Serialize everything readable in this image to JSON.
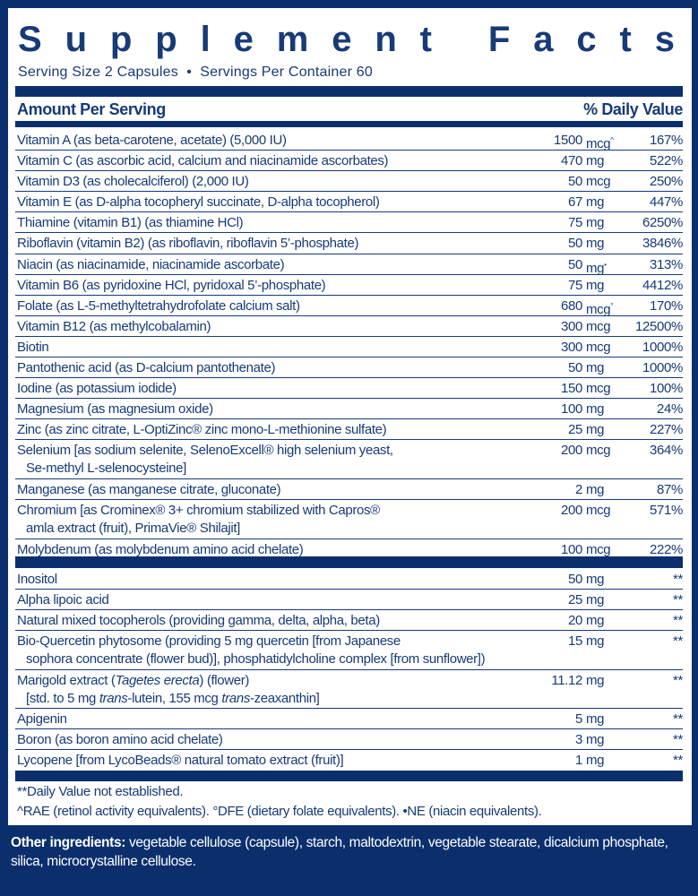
{
  "title": "Supplement Facts",
  "serving": "Serving Size 2 Capsules  •  Servings Per Container 60",
  "header": {
    "amount_per_serving": "Amount Per Serving",
    "daily_value": "% Daily Value"
  },
  "colors": {
    "navy": "#0b2f6d",
    "text": "#173a78",
    "background": "#ffffff"
  },
  "section1": [
    {
      "lines": [
        "Vitamin A (as beta-carotene, acetate) (5,000 IU)"
      ],
      "amount": "1500",
      "unit": "mcg",
      "mark": "^",
      "dv": "167%"
    },
    {
      "lines": [
        "Vitamin C (as ascorbic acid, calcium and niacinamide ascorbates)"
      ],
      "amount": "470",
      "unit": "mg",
      "mark": "",
      "dv": "522%"
    },
    {
      "lines": [
        "Vitamin D3 (as cholecalciferol) (2,000 IU)"
      ],
      "amount": "50",
      "unit": "mcg",
      "mark": "",
      "dv": "250%"
    },
    {
      "lines": [
        "Vitamin E (as D-alpha tocopheryl succinate, D-alpha tocopherol)"
      ],
      "amount": "67",
      "unit": "mg",
      "mark": "",
      "dv": "447%"
    },
    {
      "lines": [
        "Thiamine (vitamin B1) (as thiamine HCl)"
      ],
      "amount": "75",
      "unit": "mg",
      "mark": "",
      "dv": "6250%"
    },
    {
      "lines": [
        "Riboflavin (vitamin B2) (as riboflavin, riboflavin 5’-phosphate)"
      ],
      "amount": "50",
      "unit": "mg",
      "mark": "",
      "dv": "3846%"
    },
    {
      "lines": [
        "Niacin (as niacinamide, niacinamide ascorbate)"
      ],
      "amount": "50",
      "unit": "mg",
      "mark": "•",
      "dv": "313%"
    },
    {
      "lines": [
        "Vitamin B6 (as pyridoxine HCl, pyridoxal 5’-phosphate)"
      ],
      "amount": "75",
      "unit": "mg",
      "mark": "",
      "dv": "4412%"
    },
    {
      "lines": [
        "Folate (as L-5-methyltetrahydrofolate calcium salt)"
      ],
      "amount": "680",
      "unit": "mcg",
      "mark": "°",
      "dv": "170%"
    },
    {
      "lines": [
        "Vitamin B12 (as methylcobalamin)"
      ],
      "amount": "300",
      "unit": "mcg",
      "mark": "",
      "dv": "12500%"
    },
    {
      "lines": [
        "Biotin"
      ],
      "amount": "300",
      "unit": "mcg",
      "mark": "",
      "dv": "1000%"
    },
    {
      "lines": [
        "Pantothenic acid (as D-calcium pantothenate)"
      ],
      "amount": "50",
      "unit": "mg",
      "mark": "",
      "dv": "1000%"
    },
    {
      "lines": [
        "Iodine (as potassium iodide)"
      ],
      "amount": "150",
      "unit": "mcg",
      "mark": "",
      "dv": "100%"
    },
    {
      "lines": [
        "Magnesium (as magnesium oxide)"
      ],
      "amount": "100",
      "unit": "mg",
      "mark": "",
      "dv": "24%"
    },
    {
      "lines": [
        "Zinc (as zinc citrate, L-OptiZinc® zinc mono-L-methionine sulfate)"
      ],
      "amount": "25",
      "unit": "mg",
      "mark": "",
      "dv": "227%"
    },
    {
      "lines": [
        "Selenium [as sodium selenite, SelenoExcell® high selenium yeast,",
        "Se-methyl L-selenocysteine]"
      ],
      "amount": "200",
      "unit": "mcg",
      "mark": "",
      "dv": "364%"
    },
    {
      "lines": [
        "Manganese (as manganese citrate, gluconate)"
      ],
      "amount": "2",
      "unit": "mg",
      "mark": "",
      "dv": "87%"
    },
    {
      "lines": [
        "Chromium [as Crominex® 3+ chromium stabilized with Capros®",
        "amla extract (fruit), PrimaVie® Shilajit]"
      ],
      "amount": "200",
      "unit": "mcg",
      "mark": "",
      "dv": "571%"
    },
    {
      "lines": [
        "Molybdenum (as molybdenum amino acid chelate)"
      ],
      "amount": "100",
      "unit": "mcg",
      "mark": "",
      "dv": "222%"
    }
  ],
  "section2": [
    {
      "lines": [
        "Inositol"
      ],
      "amount": "50",
      "unit": "mg",
      "mark": "",
      "dv": "**"
    },
    {
      "lines": [
        "Alpha lipoic acid"
      ],
      "amount": "25",
      "unit": "mg",
      "mark": "",
      "dv": "**"
    },
    {
      "lines": [
        "Natural mixed tocopherols (providing gamma, delta, alpha, beta)"
      ],
      "amount": "20",
      "unit": "mg",
      "mark": "",
      "dv": "**"
    },
    {
      "lines": [
        "Bio-Quercetin phytosome (providing 5 mg quercetin [from Japanese",
        "sophora concentrate (flower bud)], phosphatidylcholine complex [from sunflower])"
      ],
      "amount": "15",
      "unit": "mg",
      "mark": "",
      "dv": "**"
    },
    {
      "lines": [
        [
          {
            "t": "Marigold extract ("
          },
          {
            "t": "Tagetes erecta",
            "i": true
          },
          {
            "t": ") (flower)"
          }
        ],
        [
          {
            "t": "[std. to 5 mg "
          },
          {
            "t": "trans",
            "i": true
          },
          {
            "t": "-lutein, 155 mcg "
          },
          {
            "t": "trans",
            "i": true
          },
          {
            "t": "-zeaxanthin]"
          }
        ]
      ],
      "amount": "11.12",
      "unit": "mg",
      "mark": "",
      "dv": "**"
    },
    {
      "lines": [
        "Apigenin"
      ],
      "amount": "5",
      "unit": "mg",
      "mark": "",
      "dv": "**"
    },
    {
      "lines": [
        "Boron (as boron amino acid chelate)"
      ],
      "amount": "3",
      "unit": "mg",
      "mark": "",
      "dv": "**"
    },
    {
      "lines": [
        "Lycopene [from LycoBeads® natural tomato extract (fruit)]"
      ],
      "amount": "1",
      "unit": "mg",
      "mark": "",
      "dv": "**"
    }
  ],
  "footnotes": [
    "**Daily Value not established.",
    "^RAE (retinol activity equivalents). °DFE (dietary folate equivalents). •NE (niacin equivalents)."
  ],
  "other_ingredients": {
    "label": "Other ingredients:",
    "text": " vegetable cellulose (capsule), starch, maltodextrin, vegetable stearate, dicalcium phosphate, silica, microcrystalline cellulose."
  }
}
